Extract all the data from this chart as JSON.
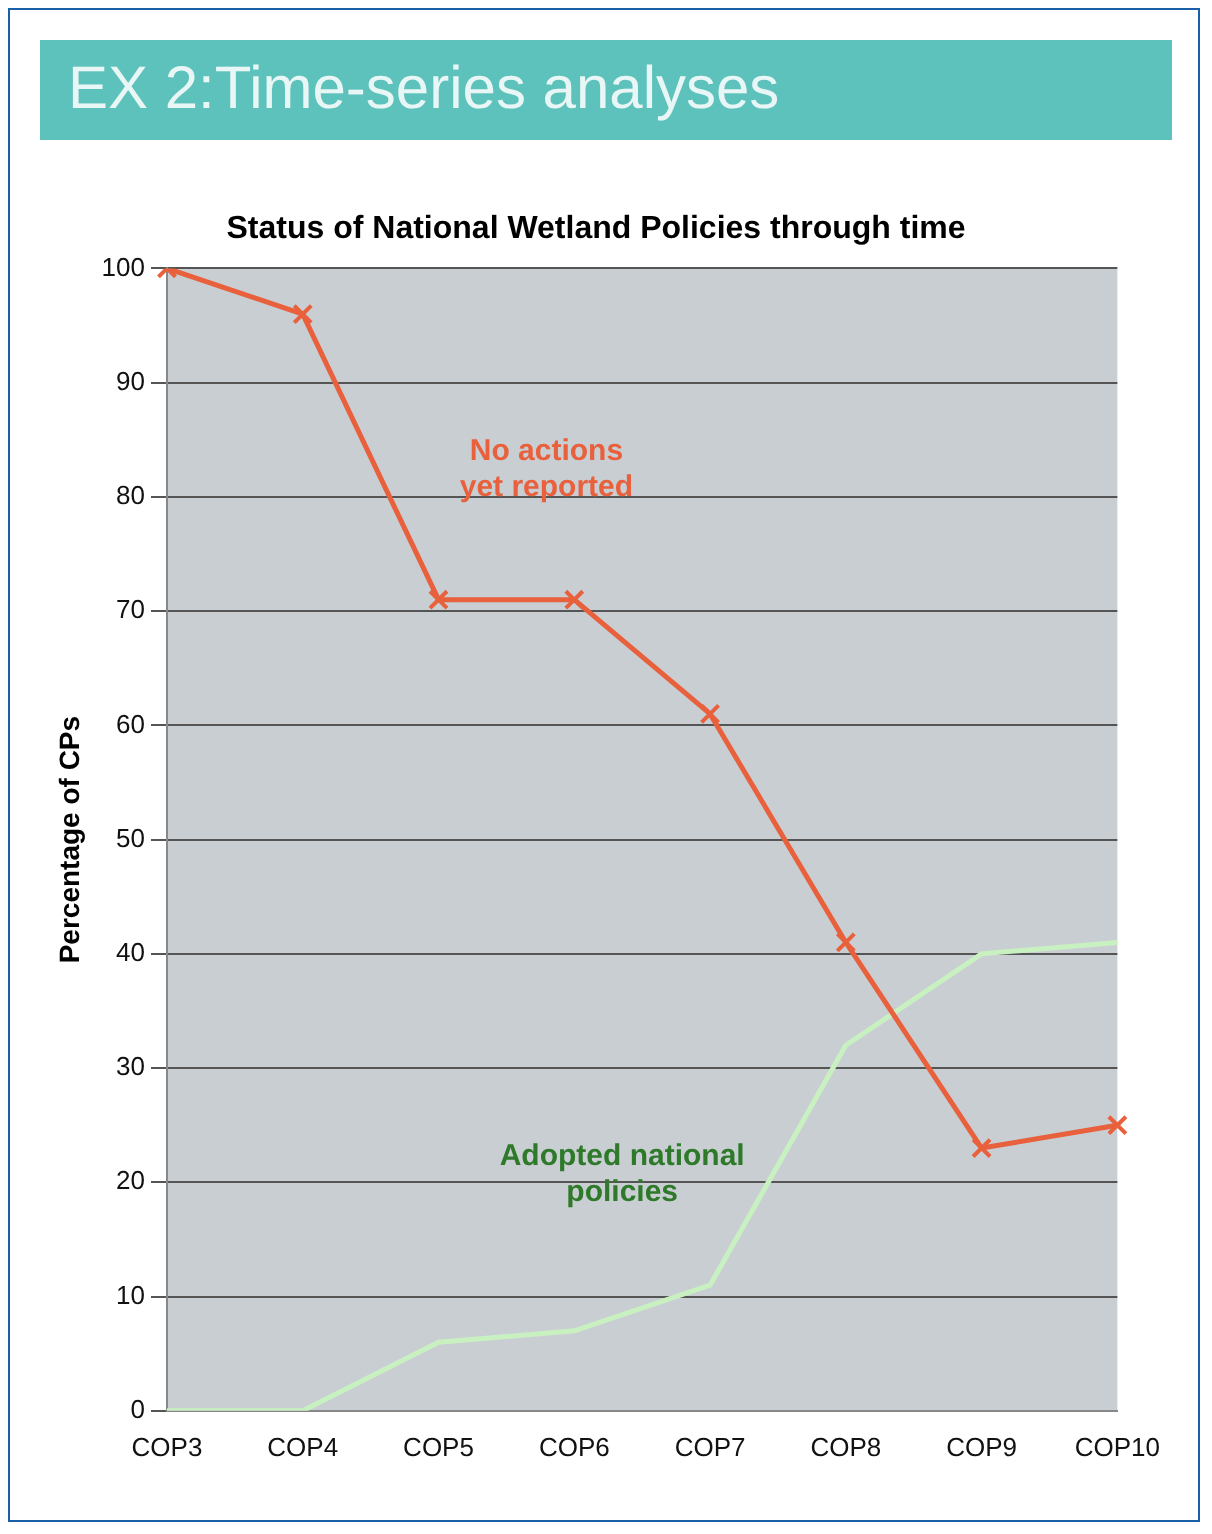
{
  "chart_data": {
    "type": "line",
    "title": "Status of National Wetland Policies through time",
    "ylabel": "Percentage of CPs",
    "categories": [
      "COP3",
      "COP4",
      "COP5",
      "COP6",
      "COP7",
      "COP8",
      "COP9",
      "COP10"
    ],
    "series": [
      {
        "name": "No actions yet reported",
        "color": "#e8603c",
        "marker": "cross",
        "values": [
          100,
          96,
          71,
          71,
          61,
          41,
          23,
          25
        ]
      },
      {
        "name": "Adopted national policies",
        "color": "#c8f0c0",
        "marker": "none",
        "values": [
          0,
          0,
          6,
          7,
          11,
          32,
          40,
          41
        ]
      }
    ],
    "ylim": [
      0,
      100
    ],
    "yticks": [
      0,
      10,
      20,
      30,
      40,
      50,
      60,
      70,
      80,
      90,
      100
    ],
    "grid": "y",
    "legend": false,
    "annotations": [
      "EX 2:Time-series analyses"
    ]
  }
}
